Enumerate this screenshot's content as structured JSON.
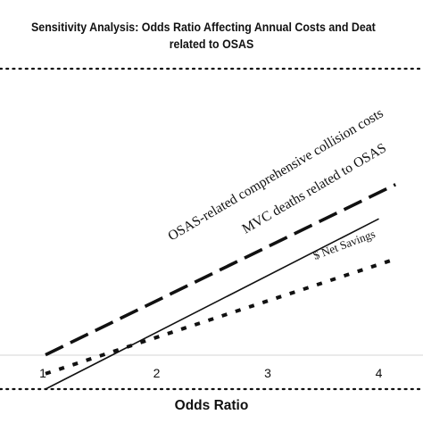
{
  "chart_data": {
    "type": "line",
    "title_line1": "Sensitivity Analysis: Odds Ratio Affecting Annual Costs and Deat",
    "title_line2": "related to OSAS",
    "xlabel": "Odds Ratio",
    "ylabel": "",
    "xlim": [
      0.98,
      4.4
    ],
    "ylim": [
      0,
      100
    ],
    "x_ticks": [
      1,
      2,
      3,
      4
    ],
    "x_tick_labels": [
      "1",
      "2",
      "3",
      "4"
    ],
    "grid": false,
    "legend": "none",
    "series": [
      {
        "name": "OSAS-related comprehensive collision costs",
        "style": "dashed-long",
        "color": "#111111",
        "x": [
          1.0,
          4.15
        ],
        "y": [
          14.5,
          86.5
        ]
      },
      {
        "name": "MVC deaths related to OSAS",
        "style": "solid",
        "color": "#111111",
        "x": [
          1.0,
          4.0
        ],
        "y": [
          0.0,
          72.0
        ]
      },
      {
        "name": "$ Net Savings",
        "style": "dashed-short",
        "color": "#111111",
        "x": [
          1.0,
          4.15
        ],
        "y": [
          6.5,
          55.0
        ]
      }
    ]
  }
}
